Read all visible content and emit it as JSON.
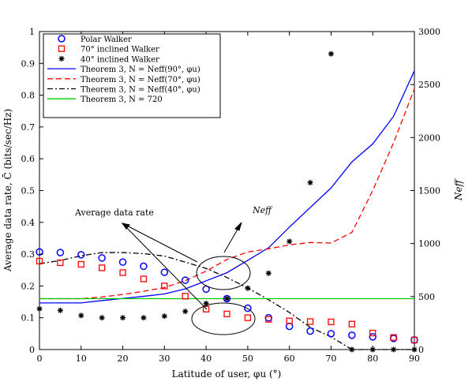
{
  "chart_data": {
    "type": "line",
    "xlabel": "Latitude of user, φu (°)",
    "ylabel_left": "Average data rate, C̄ (bits/sec/Hz)",
    "ylabel_right": "Neff",
    "xlim": [
      0,
      90
    ],
    "ylim_left": [
      0,
      1
    ],
    "ylim_right": [
      0,
      3000
    ],
    "xticks": [
      0,
      10,
      20,
      30,
      40,
      50,
      60,
      70,
      80,
      90
    ],
    "yticks_left": [
      0,
      0.1,
      0.2,
      0.3,
      0.4,
      0.5,
      0.6,
      0.7,
      0.8,
      0.9,
      1
    ],
    "yticks_right": [
      0,
      500,
      1000,
      1500,
      2000,
      2500,
      3000
    ],
    "grid": false,
    "legend_position": "top-left",
    "series": [
      {
        "name": "Polar Walker",
        "kind": "markers",
        "marker": "circle",
        "color": "#0000ff",
        "axis": "left",
        "x": [
          0,
          5,
          10,
          15,
          20,
          25,
          30,
          35,
          40,
          45,
          50,
          55,
          60,
          65,
          70,
          75,
          80,
          85,
          90
        ],
        "y": [
          0.307,
          0.305,
          0.298,
          0.288,
          0.275,
          0.262,
          0.243,
          0.218,
          0.19,
          0.16,
          0.13,
          0.1,
          0.073,
          0.058,
          0.05,
          0.045,
          0.04,
          0.035,
          0.03
        ]
      },
      {
        "name": "70° inclined Walker",
        "kind": "markers",
        "marker": "square",
        "color": "#ff0000",
        "axis": "left",
        "x": [
          0,
          5,
          10,
          15,
          20,
          25,
          30,
          35,
          40,
          45,
          50,
          55,
          60,
          65,
          70,
          75,
          80,
          85,
          90
        ],
        "y": [
          0.278,
          0.273,
          0.268,
          0.257,
          0.242,
          0.222,
          0.2,
          0.168,
          0.127,
          0.112,
          0.1,
          0.095,
          0.09,
          0.088,
          0.087,
          0.08,
          0.052,
          0.038,
          0.03
        ]
      },
      {
        "name": "40° inclined Walker",
        "kind": "markers",
        "marker": "asterisk",
        "color": "#000000",
        "axis": "left",
        "x": [
          0,
          5,
          10,
          15,
          20,
          25,
          30,
          35,
          40,
          45,
          50,
          55,
          60,
          65,
          70,
          75,
          80,
          85,
          90
        ],
        "y": [
          0.128,
          0.123,
          0.107,
          0.1,
          0.1,
          0.1,
          0.105,
          0.12,
          0.145,
          0.16,
          0.193,
          0.24,
          0.34,
          0.525,
          0.93,
          0.0,
          0.0,
          0.0,
          0.0
        ]
      },
      {
        "name": "Theorem 3, N = Neff(90°, φu)",
        "kind": "line",
        "dash": "solid",
        "color": "#0000ff",
        "axis": "right",
        "x": [
          0,
          5,
          10,
          15,
          20,
          25,
          30,
          35,
          40,
          45,
          50,
          55,
          60,
          65,
          70,
          75,
          80,
          85,
          90
        ],
        "y": [
          440,
          440,
          440,
          462,
          482,
          502,
          525,
          572,
          648,
          725,
          842,
          960,
          1155,
          1340,
          1525,
          1770,
          1940,
          2200,
          2630
        ]
      },
      {
        "name": "Theorem 3, N = Neff(70°, φu)",
        "kind": "line",
        "dash": "dashed",
        "color": "#ff0000",
        "axis": "right",
        "x": [
          0,
          5,
          10,
          15,
          20,
          25,
          30,
          35,
          40,
          45,
          50,
          55,
          60,
          65,
          70,
          75,
          80,
          85,
          90
        ],
        "y": [
          480,
          480,
          480,
          496,
          520,
          550,
          585,
          650,
          740,
          850,
          920,
          950,
          988,
          1010,
          1005,
          1105,
          1500,
          1950,
          2460
        ]
      },
      {
        "name": "Theorem 3, N = Neff(40°, φu)",
        "kind": "line",
        "dash": "dashdot",
        "color": "#000000",
        "axis": "right",
        "x": [
          0,
          5,
          10,
          15,
          20,
          25,
          30,
          35,
          40,
          45,
          50,
          55,
          60,
          65,
          70,
          75,
          80,
          85,
          90
        ],
        "y": [
          810,
          840,
          885,
          915,
          915,
          905,
          882,
          825,
          765,
          680,
          580,
          470,
          350,
          210,
          120,
          0,
          0,
          0,
          0
        ]
      },
      {
        "name": "Theorem 3, N = 720",
        "kind": "line",
        "dash": "solid",
        "color": "#00cc00",
        "axis": "left",
        "x": [
          0,
          90
        ],
        "y": [
          0.16,
          0.16
        ]
      }
    ],
    "peak_40": {
      "x": [
        65,
        70,
        75
      ],
      "y": [
        0.525,
        0.93,
        0.0
      ]
    },
    "annotations": [
      {
        "text": "Average data rate"
      },
      {
        "text": "Neff"
      }
    ]
  }
}
